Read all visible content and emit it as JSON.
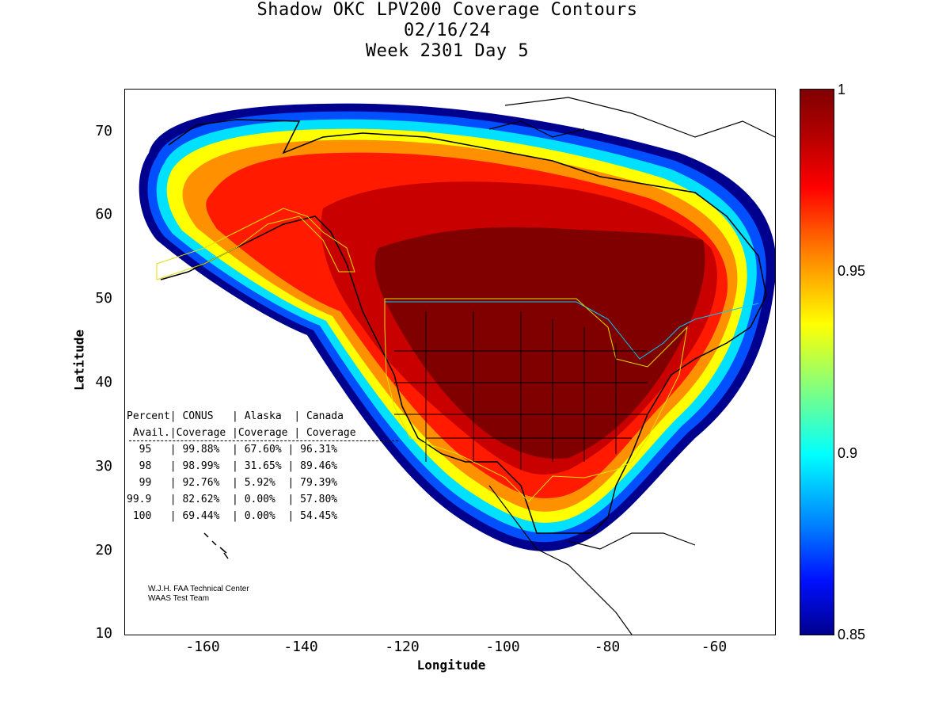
{
  "title": {
    "line1": "Shadow OKC LPV200 Coverage Contours",
    "line2": "02/16/24",
    "line3": "Week 2301 Day 5"
  },
  "axes": {
    "xlabel": "Longitude",
    "ylabel": "Latitude",
    "xticks": [
      "-160",
      "-140",
      "-120",
      "-100",
      "-80",
      "-60"
    ],
    "yticks": [
      "70",
      "60",
      "50",
      "40",
      "30",
      "20",
      "10"
    ],
    "xlim": [
      -175,
      -50
    ],
    "ylim": [
      10,
      75
    ]
  },
  "colorbar": {
    "ticks": [
      "1",
      "0.95",
      "0.9",
      "0.85"
    ],
    "range": [
      0.85,
      1.0
    ],
    "colormap": "jet"
  },
  "stats_table": {
    "header1": "Percent| CONUS   | Alaska  | Canada",
    "header2": " Avail.|Coverage |Coverage | Coverage",
    "rows": [
      "  95   | 99.88%  | 67.60% | 96.31%",
      "  98   | 98.99%  | 31.65% | 89.46%",
      "  99   | 92.76%  | 5.92%  | 79.39%",
      "99.9   | 82.62%  | 0.00%  | 57.80%",
      " 100   | 69.44%  | 0.00%  | 54.45%"
    ]
  },
  "credit": {
    "line1": "W.J.H. FAA Technical Center",
    "line2": "WAAS Test Team"
  },
  "colors": {
    "outer": "#00008f",
    "mid": "#00ffff",
    "yellow": "#ffff00",
    "orange": "#ff8000",
    "red": "#ff0000",
    "darkred": "#a00000",
    "core": "#800000"
  }
}
